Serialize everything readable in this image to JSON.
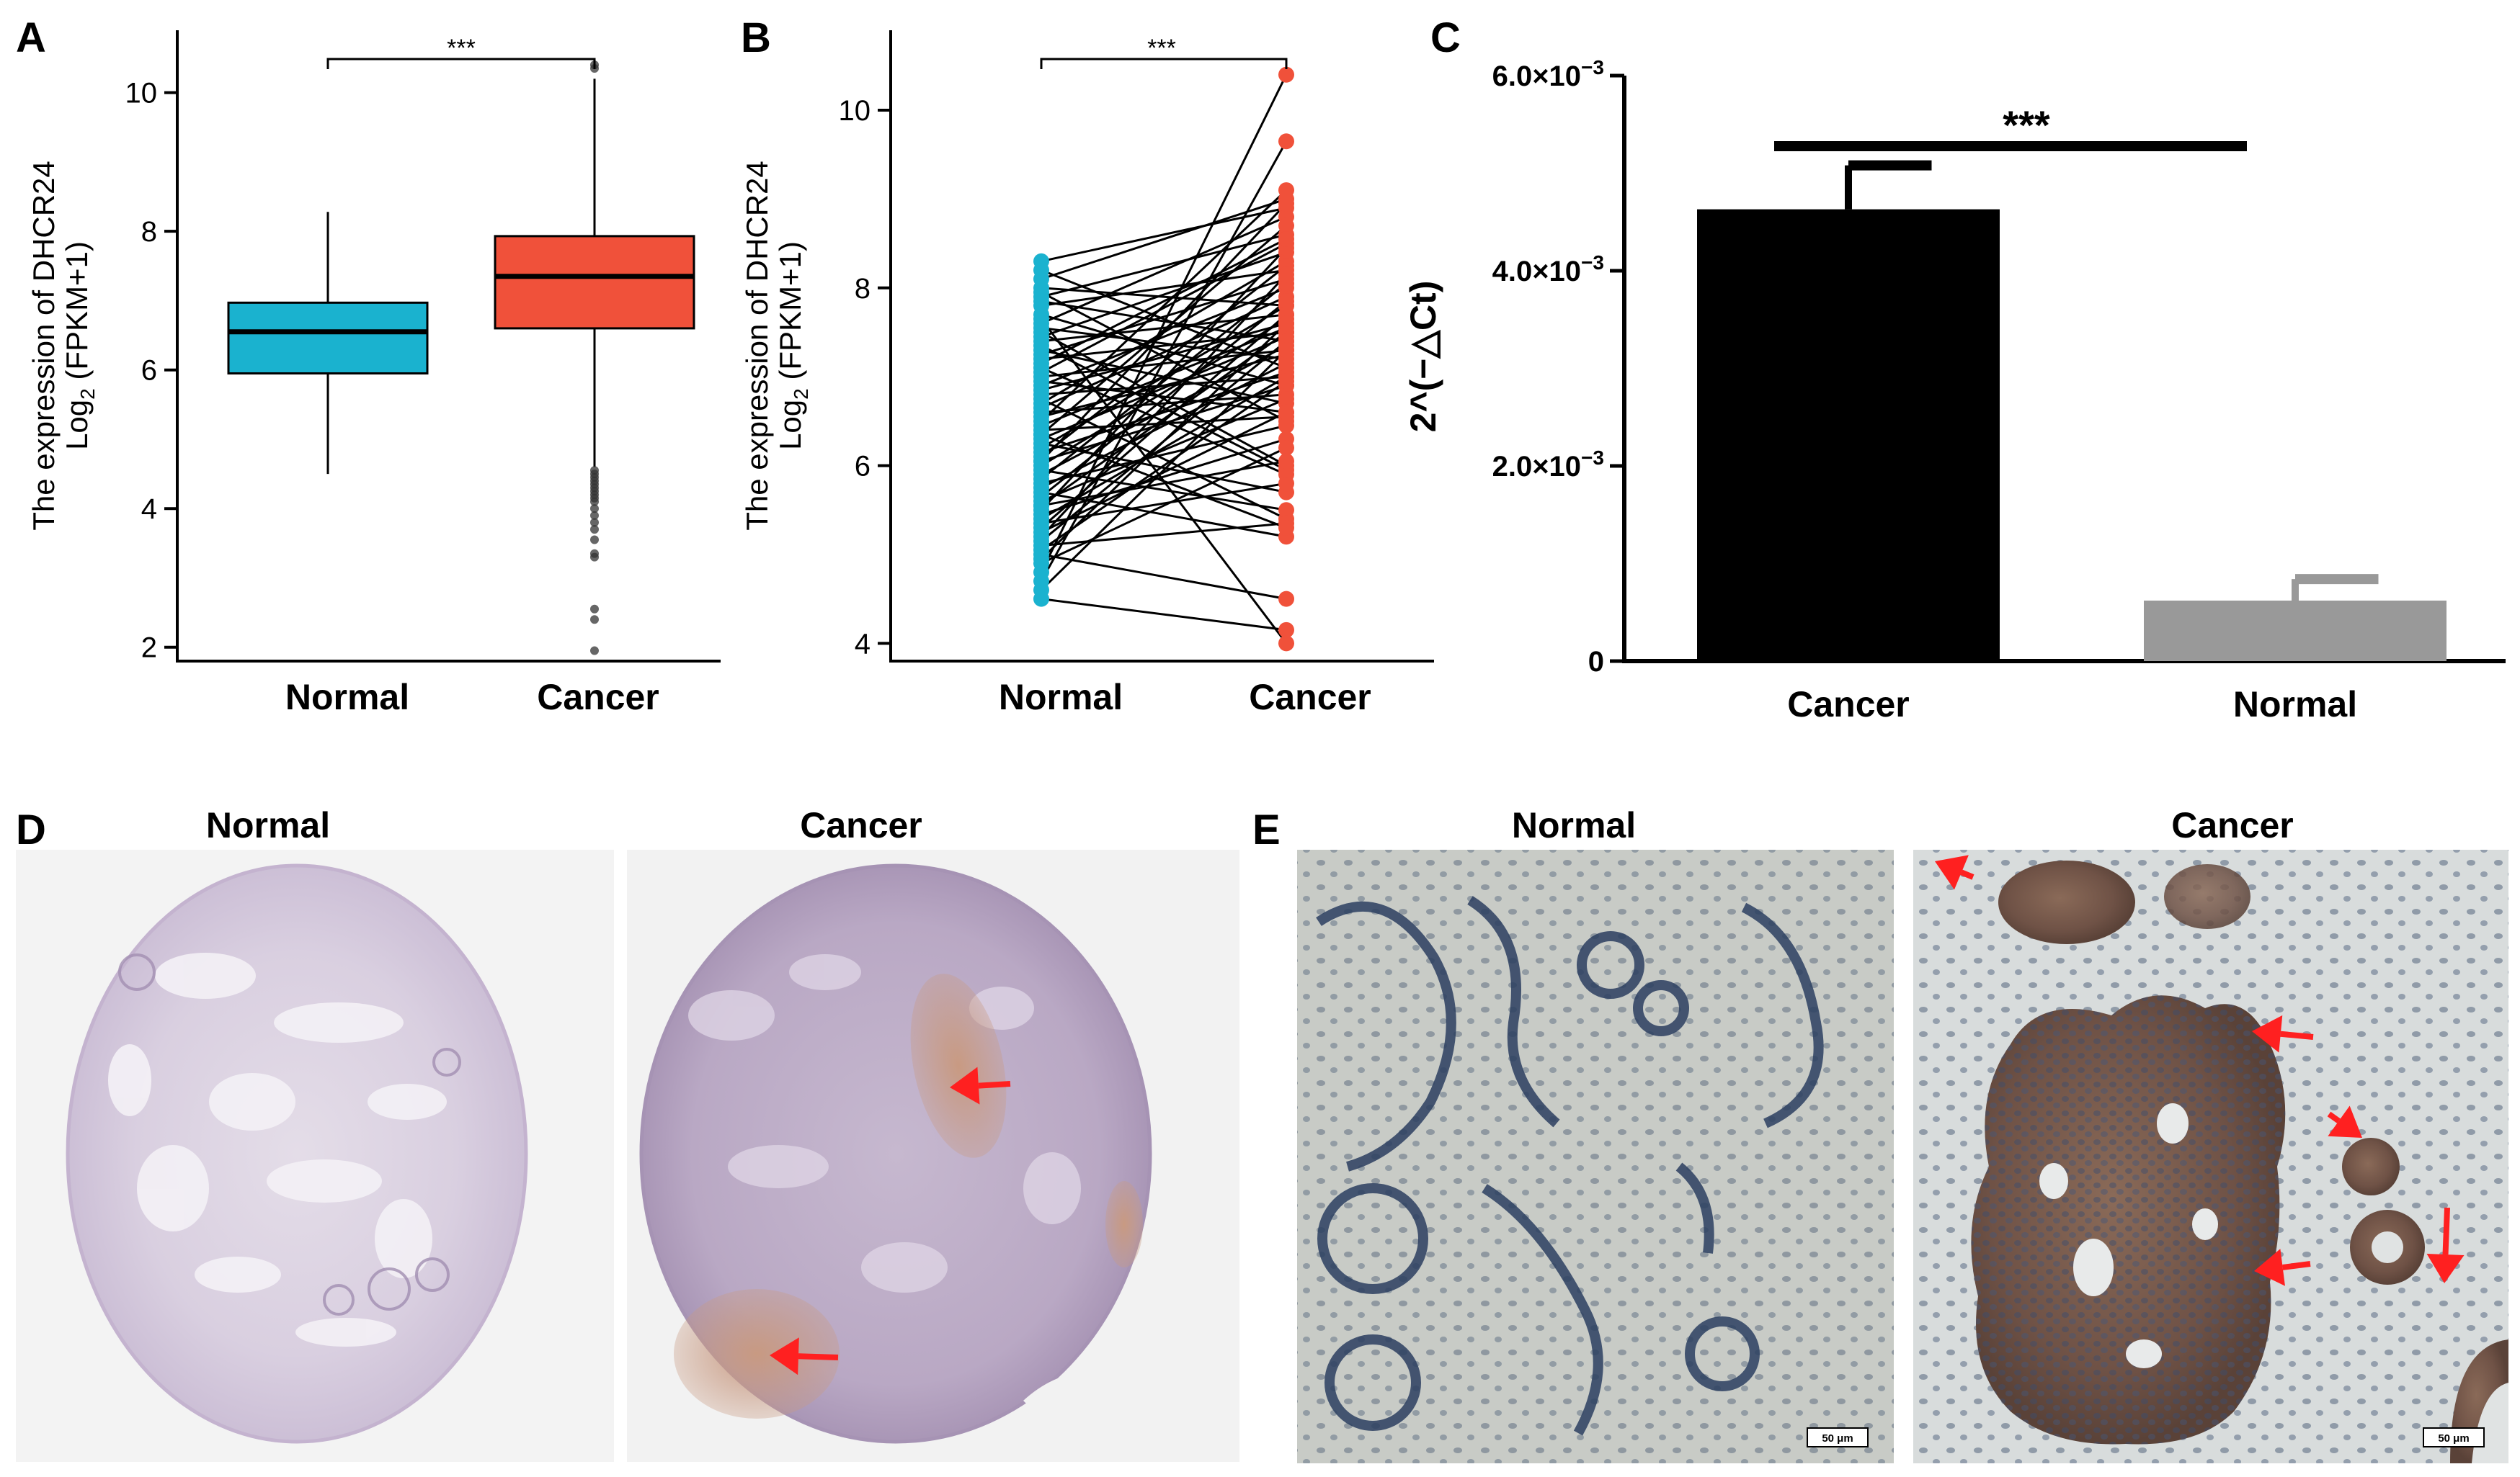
{
  "panels": {
    "A": {
      "label": "A"
    },
    "B": {
      "label": "B"
    },
    "C": {
      "label": "C"
    },
    "D": {
      "label": "D",
      "left_title": "Normal",
      "right_title": "Cancer"
    },
    "E": {
      "label": "E",
      "left_title": "Normal",
      "right_title": "Cancer",
      "scale_bar": "50 μm"
    }
  },
  "colors": {
    "normal": "#1ab2cf",
    "cancer": "#f0513a",
    "bar_cancer": "#000000",
    "bar_normal": "#999999",
    "arrow": "#ff2020"
  },
  "chart_data": [
    {
      "id": "A",
      "type": "box",
      "categories": [
        "Normal",
        "Cancer"
      ],
      "ylabel_line1": "The expression of DHCR24",
      "ylabel_line2_prefix": "Log",
      "ylabel_line2_sub": "2",
      "ylabel_line2_suffix": " (FPKM+1)",
      "ylim": [
        1.8,
        10.9
      ],
      "yticks": [
        2,
        4,
        6,
        8,
        10
      ],
      "boxes": [
        {
          "name": "Normal",
          "whisker_low": 4.5,
          "q1": 5.95,
          "median": 6.55,
          "q3": 6.97,
          "whisker_high": 8.28,
          "outliers": []
        },
        {
          "name": "Cancer",
          "whisker_low": 4.6,
          "q1": 6.6,
          "median": 7.35,
          "q3": 7.93,
          "whisker_high": 10.2,
          "outliers": [
            10.4,
            10.35,
            4.55,
            4.5,
            4.45,
            4.4,
            4.35,
            4.3,
            4.25,
            4.2,
            4.15,
            4.1,
            4.0,
            3.9,
            3.8,
            3.7,
            3.55,
            3.35,
            3.3,
            2.55,
            2.4,
            1.95
          ]
        }
      ],
      "significance": "***"
    },
    {
      "id": "B",
      "type": "paired",
      "categories": [
        "Normal",
        "Cancer"
      ],
      "ylabel_line1": "The expression of DHCR24",
      "ylabel_line2_prefix": "Log",
      "ylabel_line2_sub": "2",
      "ylabel_line2_suffix": " (FPKM+1)",
      "ylim": [
        3.8,
        10.9
      ],
      "yticks": [
        4,
        6,
        8,
        10
      ],
      "pairs": [
        [
          8.3,
          8.9
        ],
        [
          8.2,
          7.1
        ],
        [
          8.1,
          9.0
        ],
        [
          8.0,
          7.8
        ],
        [
          7.95,
          6.5
        ],
        [
          7.9,
          8.6
        ],
        [
          7.85,
          7.4
        ],
        [
          7.8,
          8.2
        ],
        [
          7.7,
          6.9
        ],
        [
          7.6,
          8.8
        ],
        [
          7.55,
          7.2
        ],
        [
          7.5,
          6.0
        ],
        [
          7.45,
          8.4
        ],
        [
          7.4,
          7.7
        ],
        [
          7.3,
          6.7
        ],
        [
          7.25,
          8.1
        ],
        [
          7.2,
          7.5
        ],
        [
          7.1,
          5.9
        ],
        [
          7.05,
          8.5
        ],
        [
          7.0,
          7.3
        ],
        [
          6.95,
          6.6
        ],
        [
          6.9,
          8.0
        ],
        [
          6.85,
          7.6
        ],
        [
          6.8,
          7.0
        ],
        [
          6.75,
          5.4
        ],
        [
          6.7,
          8.3
        ],
        [
          6.65,
          7.9
        ],
        [
          6.6,
          6.8
        ],
        [
          6.55,
          7.25
        ],
        [
          6.5,
          9.1
        ],
        [
          6.45,
          7.55
        ],
        [
          6.4,
          6.55
        ],
        [
          6.35,
          8.7
        ],
        [
          6.3,
          7.45
        ],
        [
          6.25,
          5.7
        ],
        [
          6.2,
          7.8
        ],
        [
          6.15,
          7.05
        ],
        [
          6.1,
          8.25
        ],
        [
          6.05,
          6.9
        ],
        [
          6.0,
          7.65
        ],
        [
          5.95,
          5.5
        ],
        [
          5.9,
          7.35
        ],
        [
          5.85,
          8.05
        ],
        [
          5.8,
          6.45
        ],
        [
          5.75,
          7.15
        ],
        [
          5.7,
          5.2
        ],
        [
          5.65,
          7.85
        ],
        [
          5.6,
          6.75
        ],
        [
          5.55,
          7.5
        ],
        [
          5.5,
          8.45
        ],
        [
          5.45,
          6.3
        ],
        [
          5.4,
          7.0
        ],
        [
          5.35,
          5.8
        ],
        [
          5.3,
          7.7
        ],
        [
          5.25,
          6.6
        ],
        [
          5.2,
          8.15
        ],
        [
          5.15,
          7.4
        ],
        [
          5.1,
          5.35
        ],
        [
          5.05,
          6.95
        ],
        [
          5.0,
          4.5
        ],
        [
          4.95,
          7.6
        ],
        [
          4.9,
          6.2
        ],
        [
          4.8,
          10.4
        ],
        [
          4.7,
          9.65
        ],
        [
          4.6,
          7.3
        ],
        [
          4.5,
          4.15
        ],
        [
          7.65,
          4.0
        ],
        [
          7.35,
          5.95
        ],
        [
          6.05,
          8.95
        ],
        [
          5.55,
          6.05
        ],
        [
          6.35,
          5.3
        ],
        [
          7.15,
          8.55
        ]
      ],
      "significance": "***"
    },
    {
      "id": "C",
      "type": "bar",
      "categories": [
        "Cancer",
        "Normal"
      ],
      "values": [
        0.00463,
        0.00062
      ],
      "errors": [
        0.00045,
        0.00022
      ],
      "ylabel": "2^(−△Ct)",
      "ylim": [
        0,
        0.006
      ],
      "yticks": [
        {
          "value": 0,
          "mantissa": "0",
          "exp": ""
        },
        {
          "value": 0.002,
          "mantissa": "2.0×10",
          "exp": "−3"
        },
        {
          "value": 0.004,
          "mantissa": "4.0×10",
          "exp": "−3"
        },
        {
          "value": 0.006,
          "mantissa": "6.0×10",
          "exp": "−3"
        }
      ],
      "significance": "***"
    }
  ]
}
